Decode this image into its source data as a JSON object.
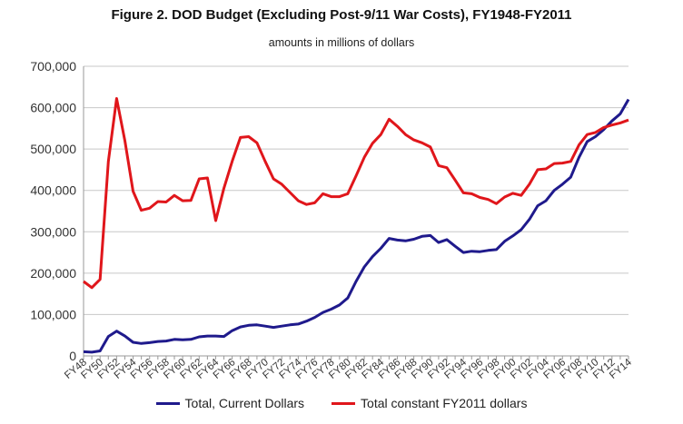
{
  "chart_data": {
    "type": "line",
    "title": "Figure 2. DOD Budget (Excluding Post-9/11 War Costs), FY1948-FY2011",
    "subtitle": "amounts in millions of dollars",
    "xlabel": "",
    "ylabel": "",
    "ylim": [
      0,
      700000
    ],
    "yticks": [
      0,
      100000,
      200000,
      300000,
      400000,
      500000,
      600000,
      700000
    ],
    "ytick_labels": [
      "0",
      "100,000",
      "200,000",
      "300,000",
      "400,000",
      "500,000",
      "600,000",
      "700,000"
    ],
    "grid": true,
    "legend_position": "bottom",
    "categories": [
      "FY48",
      "FY49",
      "FY50",
      "FY51",
      "FY52",
      "FY53",
      "FY54",
      "FY55",
      "FY56",
      "FY57",
      "FY58",
      "FY59",
      "FY60",
      "FY61",
      "FY62",
      "FY63",
      "FY64",
      "FY65",
      "FY66",
      "FY67",
      "FY68",
      "FY69",
      "FY70",
      "FY71",
      "FY72",
      "FY73",
      "FY74",
      "FY75",
      "FY76",
      "FY77",
      "FY78",
      "FY79",
      "FY80",
      "FY81",
      "FY82",
      "FY83",
      "FY84",
      "FY85",
      "FY86",
      "FY87",
      "FY88",
      "FY89",
      "FY90",
      "FY91",
      "FY92",
      "FY93",
      "FY94",
      "FY95",
      "FY96",
      "FY97",
      "FY98",
      "FY99",
      "FY00",
      "FY01",
      "FY02",
      "FY03",
      "FY04",
      "FY05",
      "FY06",
      "FY07",
      "FY08",
      "FY09",
      "FY10",
      "FY11",
      "FY12",
      "FY13",
      "FY14"
    ],
    "x_tick_labels": [
      "FY48",
      "FY50",
      "FY52",
      "FY54",
      "FY56",
      "FY58",
      "FY60",
      "FY62",
      "FY64",
      "FY66",
      "FY68",
      "FY70",
      "FY72",
      "FY74",
      "FY76",
      "FY78",
      "FY80",
      "FY82",
      "FY84",
      "FY86",
      "FY88",
      "FY90",
      "FY92",
      "FY94",
      "FY96",
      "FY98",
      "FY00",
      "FY02",
      "FY04",
      "FY06",
      "FY08",
      "FY10",
      "FY12",
      "FY14"
    ],
    "series": [
      {
        "name": "Total, Current Dollars",
        "color": "#1f1a8c",
        "values": [
          10000,
          9000,
          12000,
          47000,
          60000,
          48000,
          33000,
          30000,
          32000,
          35000,
          36000,
          40000,
          39000,
          40000,
          46000,
          48000,
          48000,
          47000,
          61000,
          70000,
          74000,
          75000,
          72000,
          69000,
          72000,
          75000,
          77000,
          84000,
          93000,
          105000,
          113000,
          123000,
          140000,
          180000,
          215000,
          240000,
          260000,
          284000,
          280000,
          278000,
          282000,
          289000,
          291000,
          274000,
          281000,
          265000,
          250000,
          253000,
          252000,
          255000,
          257000,
          277000,
          290000,
          305000,
          330000,
          363000,
          375000,
          400000,
          415000,
          432000,
          480000,
          518000,
          530000,
          547000,
          568000,
          585000,
          620000
        ]
      },
      {
        "name": "Total constant FY2011 dollars",
        "color": "#e0161b",
        "values": [
          180000,
          165000,
          185000,
          470000,
          622000,
          520000,
          398000,
          352000,
          357000,
          373000,
          372000,
          388000,
          375000,
          376000,
          428000,
          430000,
          327000,
          405000,
          470000,
          528000,
          530000,
          515000,
          470000,
          428000,
          415000,
          395000,
          375000,
          366000,
          370000,
          392000,
          385000,
          385000,
          392000,
          435000,
          480000,
          514000,
          535000,
          572000,
          555000,
          535000,
          522000,
          515000,
          505000,
          460000,
          455000,
          425000,
          394000,
          392000,
          383000,
          378000,
          368000,
          384000,
          393000,
          388000,
          415000,
          450000,
          452000,
          465000,
          466000,
          470000,
          510000,
          535000,
          540000,
          552000,
          558000,
          563000,
          570000
        ]
      }
    ]
  }
}
